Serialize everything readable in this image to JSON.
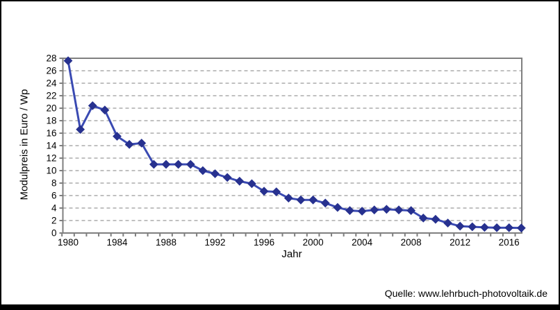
{
  "chart_data": {
    "type": "line",
    "series_name": "Modulpreis",
    "x": [
      1980,
      1981,
      1982,
      1983,
      1984,
      1985,
      1986,
      1987,
      1988,
      1989,
      1990,
      1991,
      1992,
      1993,
      1994,
      1995,
      1996,
      1997,
      1998,
      1999,
      2000,
      2001,
      2002,
      2003,
      2004,
      2005,
      2006,
      2007,
      2008,
      2009,
      2010,
      2011,
      2012,
      2013,
      2014,
      2015,
      2016,
      2017
    ],
    "values": [
      27.6,
      16.6,
      20.4,
      19.7,
      15.5,
      14.2,
      14.4,
      11.0,
      11.0,
      11.0,
      11.0,
      10.0,
      9.5,
      8.9,
      8.3,
      7.9,
      6.7,
      6.6,
      5.6,
      5.3,
      5.3,
      4.8,
      4.1,
      3.6,
      3.5,
      3.7,
      3.8,
      3.7,
      3.6,
      2.4,
      2.2,
      1.6,
      1.1,
      1.0,
      0.9,
      0.85,
      0.85,
      0.8
    ],
    "xlabel": "Jahr",
    "ylabel": "Modulpreis in Euro / Wp",
    "ylim": [
      0,
      28
    ],
    "y_tick_step": 2,
    "x_major_labels": [
      1980,
      1984,
      1988,
      1992,
      1996,
      2000,
      2004,
      2008,
      2012,
      2016
    ],
    "grid": "horizontal-dashed",
    "legend": "none",
    "marker": "diamond",
    "line_color": "#3a4ab2",
    "marker_color": "#27318f",
    "grid_color": "#9a9a9a",
    "frame_color": "#7f7f7f",
    "tick_text_color": "#000000"
  },
  "footer": {
    "source": "Quelle: www.lehrbuch-photovoltaik.de"
  }
}
